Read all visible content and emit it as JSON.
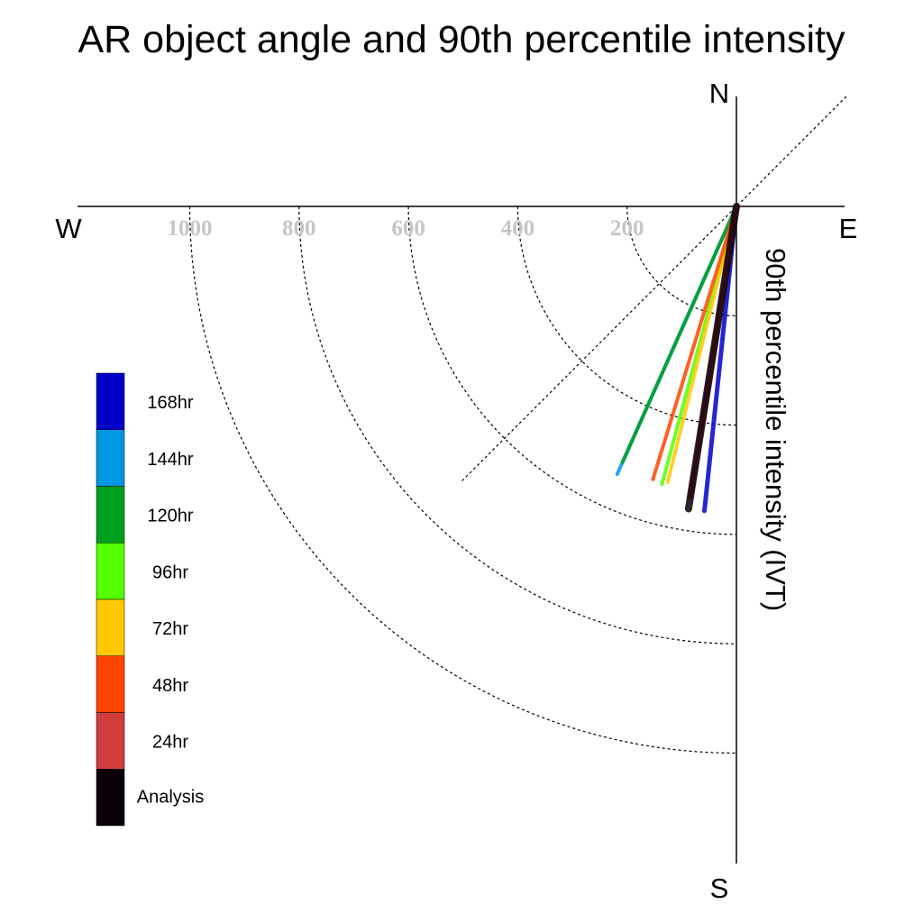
{
  "chart_data": {
    "type": "polar",
    "title": "AR object angle and 90th percentile intensity",
    "radial_label": "90th percentile intensity (IVT)",
    "radial_range": [
      0,
      1200
    ],
    "radial_ticks": [
      "1000",
      "800",
      "600",
      "400",
      "200"
    ],
    "radial_tick_values": [
      1000,
      800,
      600,
      400,
      200
    ],
    "angle_range_deg": [
      180,
      270
    ],
    "compass": {
      "north": "N",
      "south": "S",
      "east": "E",
      "west": "W"
    },
    "reference_line_angle_deg": 225,
    "legend_position": "left",
    "series": [
      {
        "name": "168hr",
        "color": "#0000c8",
        "angle_deg": 186,
        "value": 560
      },
      {
        "name": "144hr",
        "color": "#0096e1",
        "angle_deg": 204,
        "value": 536
      },
      {
        "name": "120hr",
        "color": "#009f1e",
        "angle_deg": 204,
        "value": 512
      },
      {
        "name": "96hr",
        "color": "#55ff00",
        "angle_deg": 195,
        "value": 526
      },
      {
        "name": "72hr",
        "color": "#ffc800",
        "angle_deg": 194,
        "value": 520
      },
      {
        "name": "48hr",
        "color": "#ff4400",
        "angle_deg": 197,
        "value": 522
      },
      {
        "name": "24hr",
        "color": "#d13c3c",
        "angle_deg": 189,
        "value": 538
      },
      {
        "name": "Analysis",
        "color": "#0a0007",
        "angle_deg": 189,
        "value": 560
      }
    ]
  }
}
